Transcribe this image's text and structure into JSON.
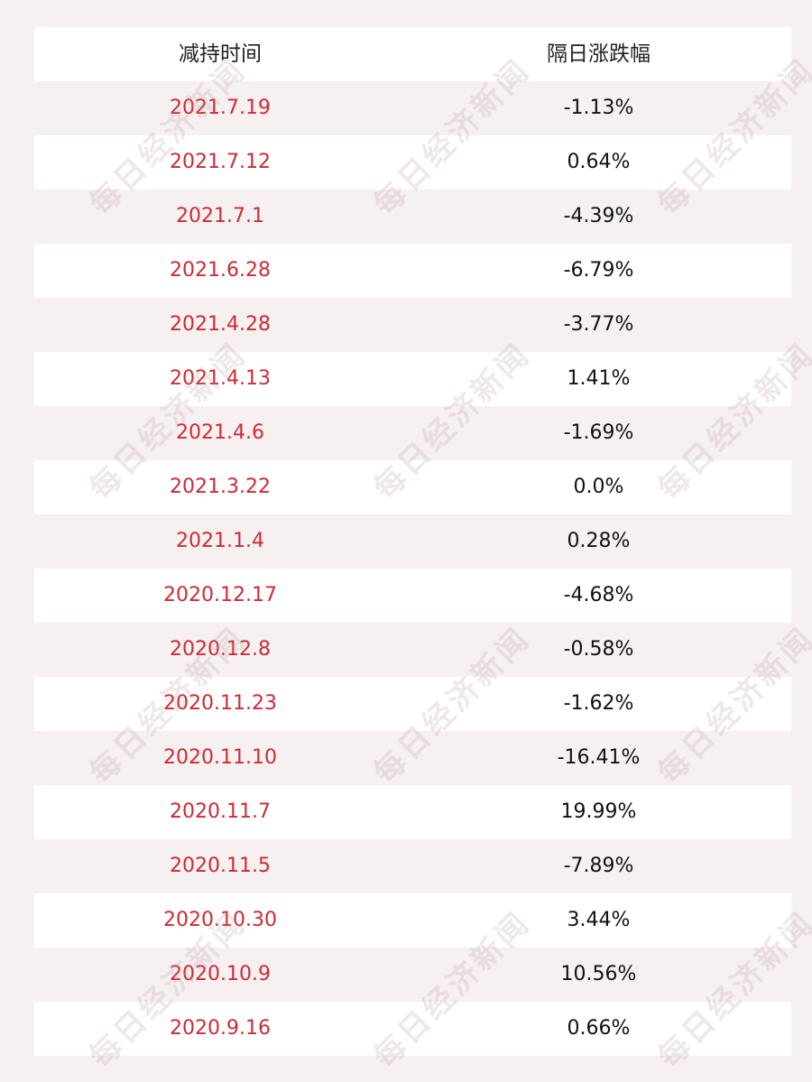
{
  "header": {
    "date_col": "减持时间",
    "change_col": "隔日涨跌幅"
  },
  "rows": [
    {
      "date": "2021.7.19",
      "change": "-1.13%"
    },
    {
      "date": "2021.7.12",
      "change": "0.64%"
    },
    {
      "date": "2021.7.1",
      "change": "-4.39%"
    },
    {
      "date": "2021.6.28",
      "change": "-6.79%"
    },
    {
      "date": "2021.4.28",
      "change": "-3.77%"
    },
    {
      "date": "2021.4.13",
      "change": "1.41%"
    },
    {
      "date": "2021.4.6",
      "change": "-1.69%"
    },
    {
      "date": "2021.3.22",
      "change": "0.0%"
    },
    {
      "date": "2021.1.4",
      "change": "0.28%"
    },
    {
      "date": "2020.12.17",
      "change": "-4.68%"
    },
    {
      "date": "2020.12.8",
      "change": "-0.58%"
    },
    {
      "date": "2020.11.23",
      "change": "-1.62%"
    },
    {
      "date": "2020.11.10",
      "change": "-16.41%"
    },
    {
      "date": "2020.11.7",
      "change": "19.99%"
    },
    {
      "date": "2020.11.5",
      "change": "-7.89%"
    },
    {
      "date": "2020.10.30",
      "change": "3.44%"
    },
    {
      "date": "2020.10.9",
      "change": "10.56%"
    },
    {
      "date": "2020.9.16",
      "change": "0.66%"
    }
  ],
  "watermark": {
    "text": "每日经济新闻"
  },
  "colors": {
    "date_text": "#cc2b35",
    "change_text": "#111111",
    "header_text": "#222222",
    "row_white": "#ffffff",
    "row_tint": "#f6f0f1"
  }
}
